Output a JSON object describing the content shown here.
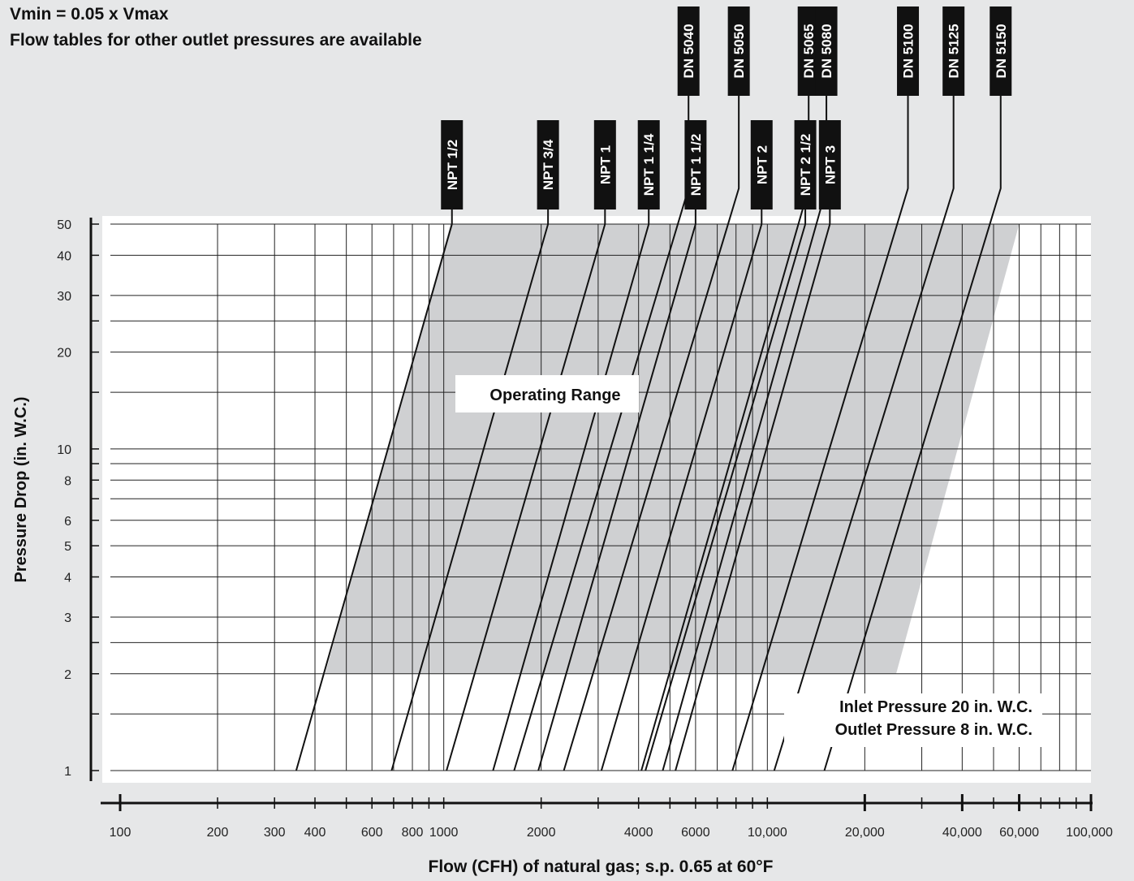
{
  "header": {
    "line1": "Vmin = 0.05 x Vmax",
    "line2": "Flow tables for other outlet pressures are available"
  },
  "chart_data": {
    "type": "line",
    "xscale": "log",
    "yscale": "log",
    "xlabel": "Flow (CFH) of natural gas; s.p. 0.65 at 60°F",
    "ylabel": "Pressure Drop (in. W.C.)",
    "xlim": [
      100,
      100000
    ],
    "ylim": [
      1,
      50
    ],
    "grid": true,
    "x_ticks": [
      {
        "value": 100,
        "label": "100"
      },
      {
        "value": 200,
        "label": "200"
      },
      {
        "value": 300,
        "label": "300"
      },
      {
        "value": 400,
        "label": "400"
      },
      {
        "value": 600,
        "label": "600"
      },
      {
        "value": 800,
        "label": "800"
      },
      {
        "value": 1000,
        "label": "1000"
      },
      {
        "value": 2000,
        "label": "2000"
      },
      {
        "value": 4000,
        "label": "4000"
      },
      {
        "value": 6000,
        "label": "6000"
      },
      {
        "value": 10000,
        "label": "10,000"
      },
      {
        "value": 20000,
        "label": "20,000"
      },
      {
        "value": 40000,
        "label": "40,000"
      },
      {
        "value": 60000,
        "label": "60,000"
      },
      {
        "value": 100000,
        "label": "100,000"
      }
    ],
    "y_ticks": [
      {
        "value": 1,
        "label": "1"
      },
      {
        "value": 2,
        "label": "2"
      },
      {
        "value": 3,
        "label": "3"
      },
      {
        "value": 4,
        "label": "4"
      },
      {
        "value": 5,
        "label": "5"
      },
      {
        "value": 6,
        "label": "6"
      },
      {
        "value": 8,
        "label": "8"
      },
      {
        "value": 10,
        "label": "10"
      },
      {
        "value": 20,
        "label": "20"
      },
      {
        "value": 30,
        "label": "30"
      },
      {
        "value": 40,
        "label": "40"
      },
      {
        "value": 50,
        "label": "50"
      }
    ],
    "operating_range": {
      "label": "Operating Range",
      "y_min": 2,
      "y_max": 50,
      "bottom_left_x": 430,
      "bottom_right_x": 25000,
      "top_left_x": 1050,
      "top_right_x": 60000
    },
    "annotations": [
      "Inlet Pressure 20 in. W.C.",
      "Outlet Pressure 8 in. W.C."
    ],
    "series": [
      {
        "name": "NPT 1/2",
        "group": "NPT",
        "points": [
          [
            350,
            1
          ],
          [
            1060,
            50
          ]
        ]
      },
      {
        "name": "NPT 3/4",
        "group": "NPT",
        "points": [
          [
            690,
            1
          ],
          [
            2100,
            50
          ]
        ]
      },
      {
        "name": "NPT 1",
        "group": "NPT",
        "points": [
          [
            1020,
            1
          ],
          [
            3150,
            50
          ]
        ]
      },
      {
        "name": "NPT 1 1/4",
        "group": "NPT",
        "points": [
          [
            1420,
            1
          ],
          [
            4300,
            50
          ]
        ]
      },
      {
        "name": "NPT 1 1/2",
        "group": "NPT",
        "points": [
          [
            1960,
            1
          ],
          [
            6000,
            50
          ]
        ]
      },
      {
        "name": "NPT 2",
        "group": "NPT",
        "points": [
          [
            3070,
            1
          ],
          [
            9600,
            50
          ]
        ]
      },
      {
        "name": "NPT 2 1/2",
        "group": "NPT",
        "points": [
          [
            4200,
            1
          ],
          [
            13100,
            50
          ]
        ]
      },
      {
        "name": "NPT 3",
        "group": "NPT",
        "points": [
          [
            5200,
            1
          ],
          [
            15600,
            50
          ]
        ]
      },
      {
        "name": "DN 5040",
        "group": "DN",
        "points": [
          [
            1650,
            1
          ],
          [
            6500,
            100
          ]
        ]
      },
      {
        "name": "DN 5050",
        "group": "DN",
        "points": [
          [
            2350,
            1
          ],
          [
            9300,
            100
          ]
        ]
      },
      {
        "name": "DN 5065",
        "group": "DN",
        "points": [
          [
            4080,
            1
          ],
          [
            15200,
            100
          ]
        ]
      },
      {
        "name": "DN 5080",
        "group": "DN",
        "points": [
          [
            4750,
            1
          ],
          [
            17200,
            100
          ]
        ]
      },
      {
        "name": "DN 5100",
        "group": "DN",
        "points": [
          [
            7800,
            1
          ],
          [
            31000,
            100
          ]
        ]
      },
      {
        "name": "DN 5125",
        "group": "DN",
        "points": [
          [
            10500,
            1
          ],
          [
            43000,
            100
          ]
        ]
      },
      {
        "name": "DN 5150",
        "group": "DN",
        "points": [
          [
            15000,
            1
          ],
          [
            60000,
            100
          ]
        ]
      }
    ]
  }
}
